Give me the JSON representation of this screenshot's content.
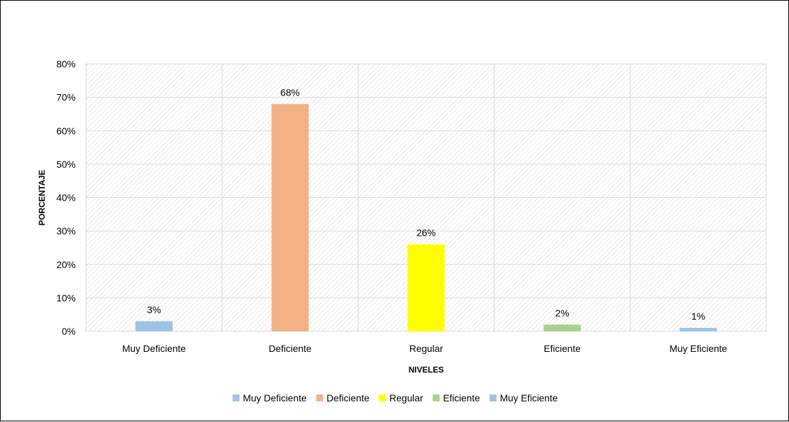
{
  "chart_data": {
    "type": "bar",
    "categories": [
      "Muy Deficiente",
      "Deficiente",
      "Regular",
      "Eficiente",
      "Muy Eficiente"
    ],
    "values": [
      3,
      68,
      26,
      2,
      1
    ],
    "value_labels": [
      "3%",
      "68%",
      "26%",
      "2%",
      "1%"
    ],
    "colors": [
      "#9DC3E6",
      "#F4B183",
      "#FFFF00",
      "#A9D18E",
      "#9DC3E6"
    ],
    "xlabel": "NIVELES",
    "ylabel": "PORCENTAJE",
    "ylim": [
      0,
      80
    ],
    "yticks": [
      "0%",
      "10%",
      "20%",
      "30%",
      "40%",
      "50%",
      "60%",
      "70%",
      "80%"
    ],
    "grid": true,
    "plot_background": "hatched",
    "legend": {
      "position": "bottom",
      "entries": [
        "Muy Deficiente",
        "Deficiente",
        "Regular",
        "Eficiente",
        "Muy Eficiente"
      ]
    }
  }
}
